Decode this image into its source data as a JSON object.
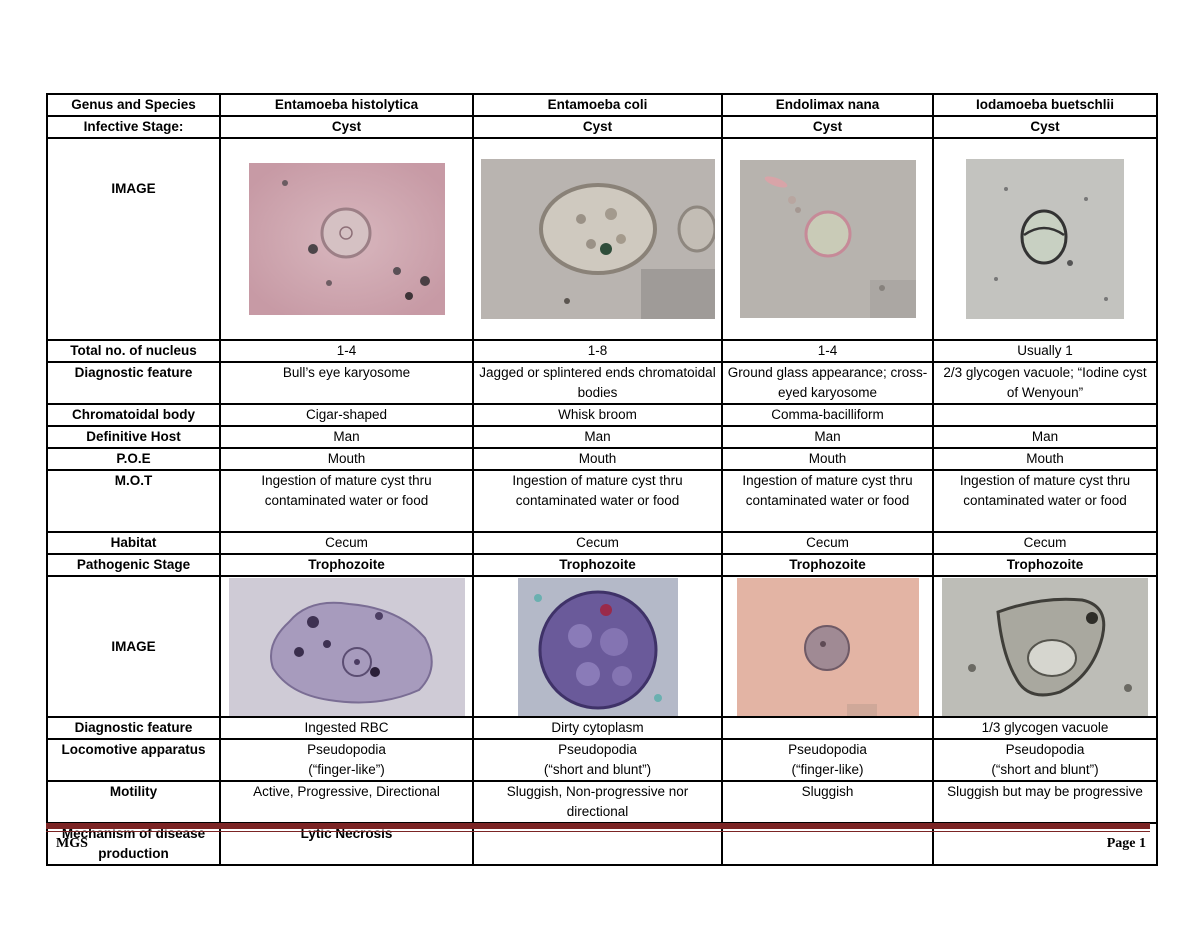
{
  "table": {
    "header": {
      "label": "Genus and Species",
      "species": [
        "Entamoeba histolytica",
        "Entamoeba coli",
        "Endolimax nana",
        "Iodamoeba buetschlii"
      ]
    },
    "infective_stage": {
      "label": "Infective Stage:",
      "values": [
        "Cyst",
        "Cyst",
        "Cyst",
        "Cyst"
      ]
    },
    "image_label_1": "IMAGE",
    "nucleus": {
      "label": "Total no. of nucleus",
      "values": [
        "1-4",
        "1-8",
        "1-4",
        "Usually 1"
      ]
    },
    "diagnostic_cyst": {
      "label": "Diagnostic feature",
      "values": [
        "Bull’s eye karyosome",
        "Jagged or splintered ends chromatoidal bodies",
        "Ground glass appearance; cross-eyed karyosome",
        "2/3 glycogen vacuole; “Iodine cyst of Wenyoun”"
      ]
    },
    "chromatoidal": {
      "label": "Chromatoidal body",
      "values": [
        "Cigar-shaped",
        "Whisk broom",
        "Comma-bacilliform",
        ""
      ]
    },
    "definitive_host": {
      "label": "Definitive Host",
      "values": [
        "Man",
        "Man",
        "Man",
        "Man"
      ]
    },
    "poe": {
      "label": "P.O.E",
      "values": [
        "Mouth",
        "Mouth",
        "Mouth",
        "Mouth"
      ]
    },
    "mot": {
      "label": "M.O.T",
      "values": [
        "Ingestion of mature cyst thru contaminated water or food",
        "Ingestion of mature cyst thru contaminated water or food",
        "Ingestion of mature cyst thru contaminated water or food",
        "Ingestion of mature cyst thru contaminated water or food"
      ]
    },
    "habitat": {
      "label": "Habitat",
      "values": [
        "Cecum",
        "Cecum",
        "Cecum",
        "Cecum"
      ]
    },
    "pathogenic": {
      "label": "Pathogenic Stage",
      "values": [
        "Trophozoite",
        "Trophozoite",
        "Trophozoite",
        "Trophozoite"
      ]
    },
    "image_label_2": "IMAGE",
    "diagnostic_troph": {
      "label": "Diagnostic feature",
      "values": [
        "Ingested RBC",
        "Dirty cytoplasm",
        "",
        "1/3 glycogen vacuole"
      ]
    },
    "locomotive": {
      "label": "Locomotive apparatus",
      "values": [
        [
          "Pseudopodia",
          "(“finger-like”)"
        ],
        [
          "Pseudopodia",
          "(“short and blunt”)"
        ],
        [
          "Pseudopodia",
          "(“finger-like)"
        ],
        [
          "Pseudopodia",
          "(“short and blunt”)"
        ]
      ]
    },
    "motility": {
      "label": "Motility",
      "values": [
        "Active, Progressive, Directional",
        "Sluggish, Non-progressive nor directional",
        "Sluggish",
        "Sluggish but may be progressive"
      ]
    },
    "mechanism": {
      "label": "Mechanism of disease production",
      "values": [
        "Lytic Necrosis",
        "",
        "",
        ""
      ]
    }
  },
  "footer": {
    "left": "MGS",
    "right": "Page 1"
  }
}
